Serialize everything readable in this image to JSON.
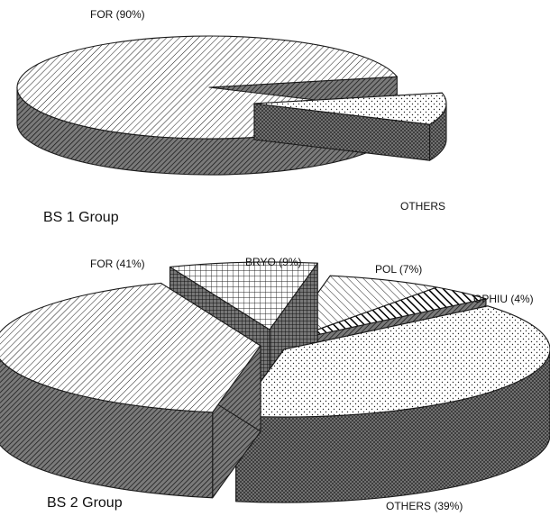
{
  "chart_data": [
    {
      "type": "pie",
      "title": "BS 1 Group",
      "categories": [
        "FOR (90%)",
        "OTHERS"
      ],
      "values": [
        90,
        10
      ],
      "exploded": [
        "OTHERS"
      ],
      "style": "3d"
    },
    {
      "type": "pie",
      "title": "BS 2 Group",
      "categories": [
        "FOR (41%)",
        "BRYO (9%)",
        "POL (7%)",
        "OPHIU (4%)",
        "OTHERS (39%)"
      ],
      "values": [
        41,
        9,
        7,
        4,
        39
      ],
      "exploded": [
        "FOR (41%)",
        "BRYO (9%)"
      ],
      "style": "3d"
    }
  ],
  "colors": {
    "ink": "#1a1a1a",
    "side_dark": "#6e6e6e",
    "side_darker": "#565656",
    "face_light": "#ffffff"
  }
}
